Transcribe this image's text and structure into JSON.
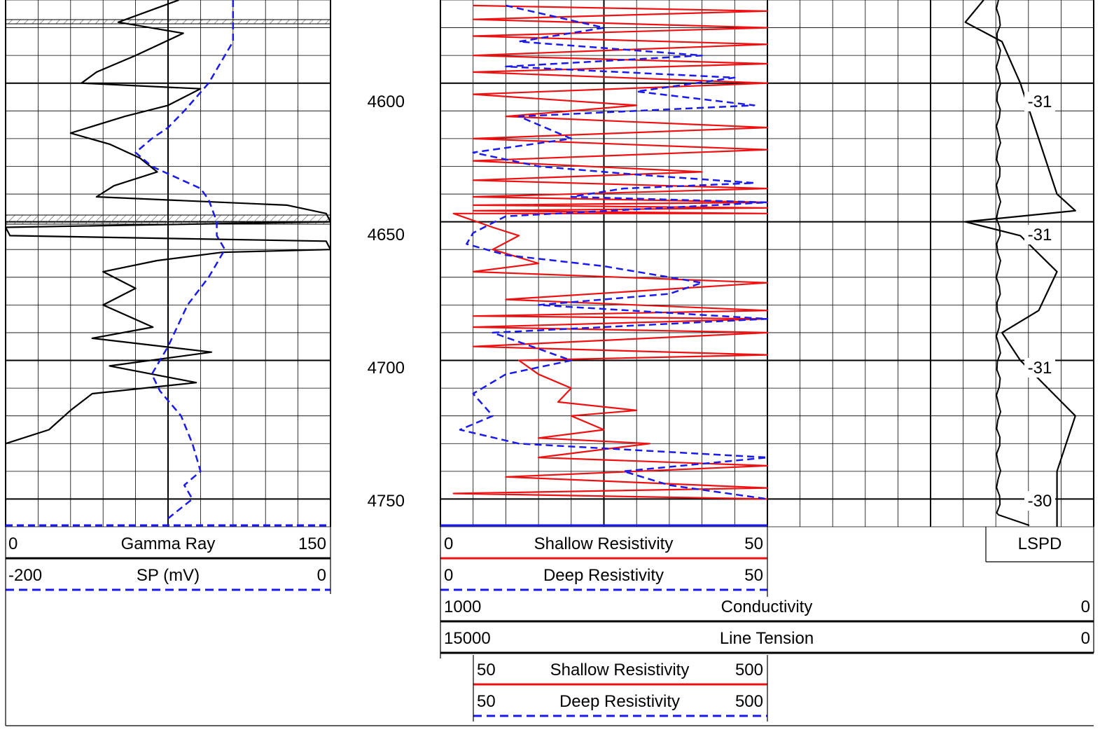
{
  "colors": {
    "grid": "#000000",
    "gamma_ray": "#000000",
    "sp": "#1a1aee",
    "shallow_resistivity": "#ee1111",
    "deep_resistivity": "#1a1aee",
    "lspd": "#000000",
    "conductivity": "#000000",
    "line_tension": "#000000"
  },
  "depth_track": {
    "labels": [
      "4600",
      "4650",
      "4700",
      "4750"
    ]
  },
  "lspd_track": {
    "labels": [
      "-31",
      "-31",
      "-31",
      "-30"
    ]
  },
  "headers": {
    "gamma_ray": {
      "name": "Gamma Ray",
      "min": "0",
      "max": "150"
    },
    "sp": {
      "name": "SP (mV)",
      "min": "-200",
      "max": "0"
    },
    "shallow_resistivity": {
      "name": "Shallow Resistivity",
      "min": "0",
      "max": "50"
    },
    "deep_resistivity": {
      "name": "Deep Resistivity",
      "min": "0",
      "max": "50"
    },
    "conductivity": {
      "name": "Conductivity",
      "min": "1000",
      "max": "0"
    },
    "line_tension": {
      "name": "Line Tension",
      "min": "15000",
      "max": "0"
    },
    "shallow_resistivity_backup": {
      "name": "Shallow Resistivity",
      "min": "50",
      "max": "500"
    },
    "deep_resistivity_backup": {
      "name": "Deep Resistivity",
      "min": "50",
      "max": "500"
    },
    "lspd": {
      "name": "LSPD"
    }
  },
  "chart_data": {
    "type": "line",
    "depth_axis": {
      "range": [
        4570,
        4760
      ],
      "ticks": [
        4600,
        4650,
        4700,
        4750
      ]
    },
    "series": [
      {
        "name": "Gamma Ray",
        "scale": [
          0,
          150
        ],
        "style": "solid",
        "x": [
          80,
          52,
          82,
          60,
          42,
          35,
          90,
          75,
          55,
          30,
          48,
          62,
          70,
          50,
          42,
          130,
          148,
          150,
          0,
          2,
          148,
          150,
          100,
          70,
          45,
          60,
          45,
          68,
          40,
          95,
          48,
          88,
          40,
          30,
          20,
          0
        ],
        "y": [
          4570,
          4578,
          4582,
          4590,
          4596,
          4600,
          4602,
          4608,
          4612,
          4618,
          4622,
          4627,
          4632,
          4637,
          4641,
          4644,
          4647,
          4650,
          4652,
          4655,
          4657,
          4660,
          4661,
          4664,
          4668,
          4674,
          4680,
          4688,
          4692,
          4697,
          4702,
          4708,
          4712,
          4718,
          4725,
          4730
        ]
      },
      {
        "name": "SP (mV)",
        "scale": [
          -200,
          0
        ],
        "style": "dashed",
        "x": [
          -60,
          -60,
          -70,
          -75,
          -90,
          -100,
          -110,
          -120,
          -110,
          -80,
          -75,
          -70,
          -70,
          -65,
          -75,
          -88,
          -100,
          -110,
          -105,
          -92,
          -85,
          -80,
          -90,
          -85,
          -100
        ],
        "y": [
          4570,
          4585,
          4595,
          4600,
          4610,
          4616,
          4620,
          4625,
          4630,
          4638,
          4642,
          4650,
          4655,
          4660,
          4670,
          4680,
          4695,
          4705,
          4711,
          4720,
          4730,
          4740,
          4745,
          4750,
          4757
        ]
      },
      {
        "name": "Shallow Resistivity",
        "scale": [
          0,
          50
        ],
        "style": "solid",
        "x": [
          5,
          50,
          5,
          50,
          5,
          50,
          5,
          50,
          5,
          50,
          5,
          30,
          10,
          50,
          5,
          50,
          5,
          40,
          5,
          50,
          5,
          50,
          5,
          50,
          5,
          50,
          2,
          8,
          12,
          8,
          15,
          5,
          50,
          10,
          50,
          5,
          50,
          5,
          50,
          5,
          50,
          12,
          15,
          20,
          18,
          30,
          20,
          25,
          15,
          32,
          15,
          50,
          10,
          50,
          2,
          50
        ],
        "y": [
          4572,
          4574,
          4577,
          4580,
          4583,
          4586,
          4590,
          4593,
          4596,
          4600,
          4604,
          4608,
          4612,
          4616,
          4620,
          4624,
          4628,
          4632,
          4635,
          4638,
          4641,
          4643,
          4644,
          4645,
          4646,
          4647,
          4647,
          4652,
          4655,
          4660,
          4665,
          4668,
          4672,
          4678,
          4682,
          4684,
          4685,
          4688,
          4690,
          4695,
          4698,
          4700,
          4705,
          4710,
          4715,
          4718,
          4720,
          4725,
          4728,
          4730,
          4735,
          4738,
          4742,
          4746,
          4748,
          4750
        ]
      },
      {
        "name": "Deep Resistivity",
        "scale": [
          0,
          50
        ],
        "style": "dashed",
        "x": [
          10,
          25,
          12,
          40,
          10,
          45,
          30,
          48,
          12,
          20,
          5,
          15,
          30,
          48,
          28,
          20,
          50,
          10,
          5,
          4,
          10,
          25,
          40,
          35,
          15,
          50,
          8,
          20,
          10,
          5,
          8,
          3,
          12,
          50,
          28,
          35,
          50
        ],
        "y": [
          4572,
          4580,
          4585,
          4590,
          4594,
          4598,
          4603,
          4608,
          4612,
          4620,
          4625,
          4630,
          4633,
          4636,
          4638,
          4641,
          4643,
          4648,
          4654,
          4658,
          4662,
          4666,
          4672,
          4676,
          4680,
          4685,
          4690,
          4700,
          4705,
          4712,
          4720,
          4725,
          4730,
          4735,
          4740,
          4745,
          4750
        ]
      },
      {
        "name": "LSPD",
        "scale": [
          0,
          1
        ],
        "style": "solid",
        "x": [
          0.4,
          0.3,
          0.5,
          0.6,
          0.7,
          0.8,
          0.9,
          0.3,
          0.6,
          0.8,
          0.7,
          0.5,
          0.6,
          0.9,
          0.8,
          0.8
        ],
        "y": [
          4570,
          4578,
          4585,
          4600,
          4620,
          4640,
          4646,
          4650,
          4655,
          4668,
          4682,
          4690,
          4700,
          4720,
          4740,
          4760
        ]
      }
    ]
  }
}
